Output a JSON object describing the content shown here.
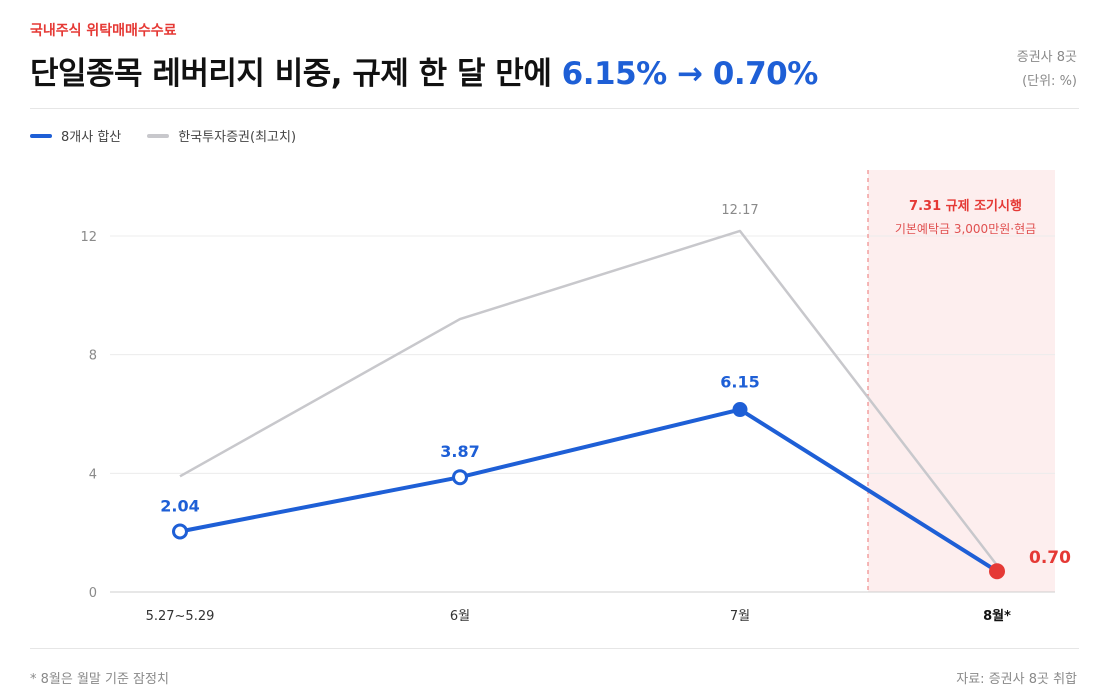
{
  "header": {
    "eyebrow": "국내주식 위탁매매수수료",
    "title_main": "단일종목 레버리지 비중, 규제 한 달 만에 ",
    "title_highlight": "6.15% → 0.70%",
    "meta_count": "증권사 8곳",
    "meta_unit": "(단위: %)"
  },
  "legend": [
    {
      "label": "8개사 합산",
      "color": "#1e5fd6"
    },
    {
      "label": "한국투자증권(최고치)",
      "color": "#c8c8cc"
    }
  ],
  "annotation": {
    "title": "7.31 규제 조기시행",
    "subtitle": "기본예탁금 3,000만원·현금",
    "color": "#e53935",
    "band_color": "#fdeeee"
  },
  "footer": {
    "footnote": "* 8월은 월말 기준 잠정치",
    "source": "자료: 증권사 8곳 취합"
  },
  "chart_data": {
    "type": "line",
    "categories": [
      "5.27~5.29",
      "6월",
      "7월",
      "8월*"
    ],
    "series": [
      {
        "name": "8개사 합산",
        "values": [
          2.04,
          3.87,
          6.15,
          0.7
        ],
        "labels": [
          "2.04",
          "3.87",
          "6.15",
          "0.70"
        ],
        "color": "#1e5fd6"
      },
      {
        "name": "한국투자증권(최고치)",
        "values": [
          3.9,
          9.2,
          12.17,
          0.9
        ],
        "labels": [
          "",
          "",
          "12.17",
          ""
        ],
        "color": "#c8c8cc"
      }
    ],
    "ylim": [
      0,
      13.2
    ],
    "yticks": [
      0,
      4,
      8,
      12
    ],
    "grid": true
  }
}
